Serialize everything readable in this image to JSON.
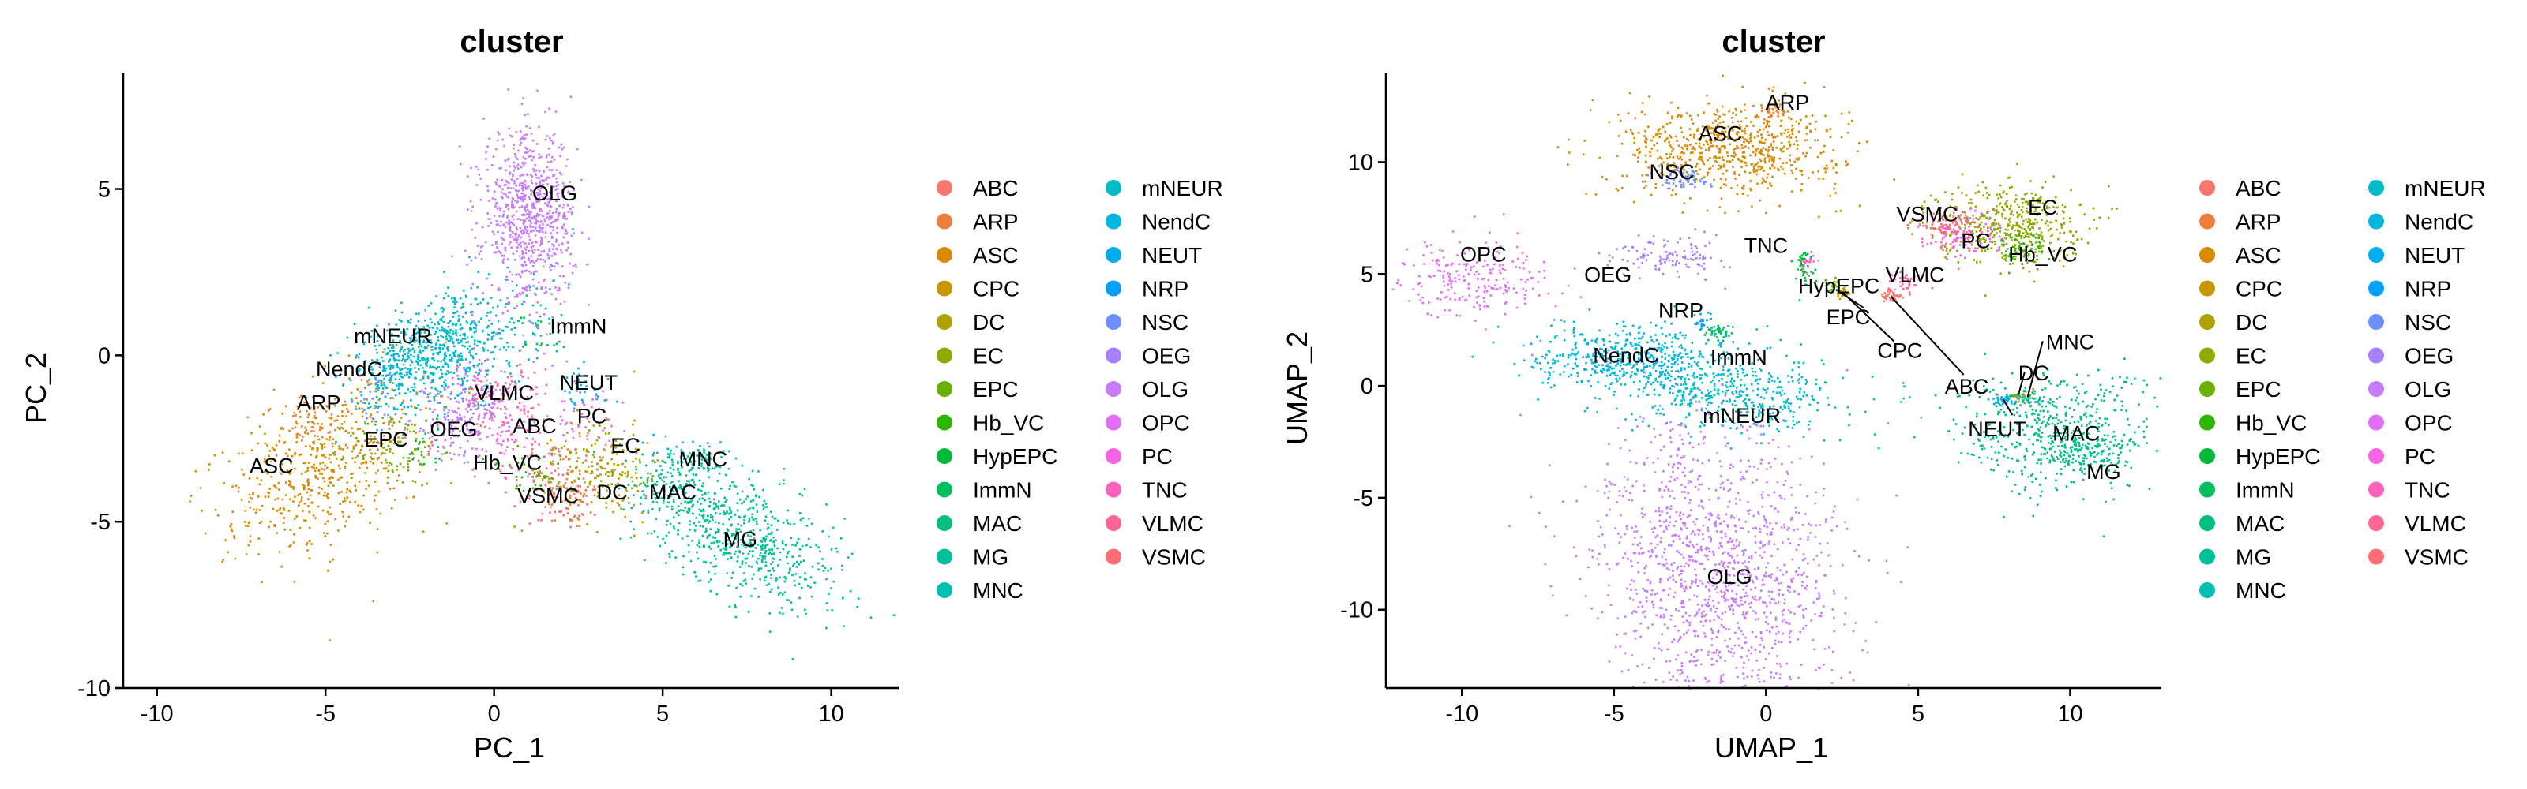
{
  "chart_data": [
    {
      "type": "scatter",
      "title": "cluster",
      "xlabel": "PC_1",
      "ylabel": "PC_2",
      "xlim": [
        -11,
        12
      ],
      "ylim": [
        -10,
        8.5
      ],
      "xticks": [
        -10,
        -5,
        0,
        5,
        10
      ],
      "yticks": [
        -10,
        -5,
        0,
        5
      ],
      "legend_position": "right",
      "clusters": [
        {
          "name": "ABC",
          "center": [
            2.2,
            -3.7
          ],
          "spread": [
            1.8,
            1.5
          ],
          "n": 60
        },
        {
          "name": "ARP",
          "center": [
            -5.5,
            -2.0
          ],
          "spread": [
            1.0,
            0.8
          ],
          "n": 40
        },
        {
          "name": "ASC",
          "center": [
            -5.0,
            -3.3
          ],
          "spread": [
            3.6,
            2.4
          ],
          "n": 600,
          "angle": 30
        },
        {
          "name": "CPC",
          "center": [
            2.0,
            -3.8
          ],
          "spread": [
            1.5,
            1.5
          ],
          "n": 60
        },
        {
          "name": "DC",
          "center": [
            3.5,
            -3.6
          ],
          "spread": [
            1.5,
            1.5
          ],
          "n": 120
        },
        {
          "name": "EC",
          "center": [
            3.0,
            -2.8
          ],
          "spread": [
            1.5,
            1.5
          ],
          "n": 50
        },
        {
          "name": "EPC",
          "center": [
            -3.0,
            -2.8
          ],
          "spread": [
            1.5,
            1.2
          ],
          "n": 80
        },
        {
          "name": "Hb_VC",
          "center": [
            1.0,
            -3.6
          ],
          "spread": [
            1.5,
            1.0
          ],
          "n": 40
        },
        {
          "name": "HypEPC",
          "center": [
            -2.0,
            -2.5
          ],
          "spread": [
            1.2,
            1.0
          ],
          "n": 20
        },
        {
          "name": "ImmN",
          "center": [
            1.3,
            0.6
          ],
          "spread": [
            1.0,
            0.8
          ],
          "n": 30
        },
        {
          "name": "MAC",
          "center": [
            5.5,
            -3.9
          ],
          "spread": [
            1.5,
            1.2
          ],
          "n": 80
        },
        {
          "name": "MG",
          "center": [
            7.2,
            -5.3
          ],
          "spread": [
            3.6,
            1.8
          ],
          "n": 650,
          "angle": -32
        },
        {
          "name": "MNC",
          "center": [
            5.8,
            -3.2
          ],
          "spread": [
            1.2,
            1.0
          ],
          "n": 70
        },
        {
          "name": "mNEUR",
          "center": [
            -1.5,
            0.3
          ],
          "spread": [
            3.0,
            1.6
          ],
          "n": 650,
          "angle": 25
        },
        {
          "name": "NendC",
          "center": [
            -3.0,
            -0.4
          ],
          "spread": [
            1.5,
            1.2
          ],
          "n": 120
        },
        {
          "name": "NEUT",
          "center": [
            2.5,
            -1.1
          ],
          "spread": [
            1.0,
            0.8
          ],
          "n": 30
        },
        {
          "name": "NRP",
          "center": [
            -0.5,
            -1.0
          ],
          "spread": [
            1.0,
            1.0
          ],
          "n": 30
        },
        {
          "name": "NSC",
          "center": [
            -3.5,
            -1.5
          ],
          "spread": [
            1.0,
            1.0
          ],
          "n": 30
        },
        {
          "name": "OEG",
          "center": [
            -1.2,
            -2.2
          ],
          "spread": [
            1.5,
            1.0
          ],
          "n": 80
        },
        {
          "name": "OLG",
          "center": [
            1.0,
            4.2
          ],
          "spread": [
            1.5,
            2.8
          ],
          "n": 800
        },
        {
          "name": "OPC",
          "center": [
            -0.5,
            -1.6
          ],
          "spread": [
            1.8,
            1.5
          ],
          "n": 180
        },
        {
          "name": "PC",
          "center": [
            2.7,
            -2.0
          ],
          "spread": [
            1.2,
            1.0
          ],
          "n": 40
        },
        {
          "name": "TNC",
          "center": [
            0.5,
            -2.7
          ],
          "spread": [
            1.5,
            1.2
          ],
          "n": 60
        },
        {
          "name": "VLMC",
          "center": [
            0.2,
            -1.2
          ],
          "spread": [
            1.5,
            1.0
          ],
          "n": 80
        },
        {
          "name": "VSMC",
          "center": [
            2.0,
            -4.2
          ],
          "spread": [
            1.2,
            1.0
          ],
          "n": 60
        }
      ],
      "annotations": [
        {
          "text": "OLG",
          "x": 1.8,
          "y": 4.9
        },
        {
          "text": "ImmN",
          "x": 2.5,
          "y": 0.9
        },
        {
          "text": "mNEUR",
          "x": -3.0,
          "y": 0.6
        },
        {
          "text": "NendC",
          "x": -4.3,
          "y": -0.4
        },
        {
          "text": "ARP",
          "x": -5.2,
          "y": -1.4
        },
        {
          "text": "VLMC",
          "x": 0.3,
          "y": -1.1
        },
        {
          "text": "NEUT",
          "x": 2.8,
          "y": -0.8
        },
        {
          "text": "PC",
          "x": 2.9,
          "y": -1.8
        },
        {
          "text": "ABC",
          "x": 1.2,
          "y": -2.1
        },
        {
          "text": "OEG",
          "x": -1.2,
          "y": -2.2
        },
        {
          "text": "EPC",
          "x": -3.2,
          "y": -2.5
        },
        {
          "text": "EC",
          "x": 3.9,
          "y": -2.7
        },
        {
          "text": "Hb_VC",
          "x": 0.4,
          "y": -3.2
        },
        {
          "text": "MNC",
          "x": 6.2,
          "y": -3.1
        },
        {
          "text": "ASC",
          "x": -6.6,
          "y": -3.3
        },
        {
          "text": "VSMC",
          "x": 1.6,
          "y": -4.2
        },
        {
          "text": "DC",
          "x": 3.5,
          "y": -4.1
        },
        {
          "text": "MAC",
          "x": 5.3,
          "y": -4.1
        },
        {
          "text": "MG",
          "x": 7.3,
          "y": -5.5
        }
      ]
    },
    {
      "type": "scatter",
      "title": "cluster",
      "xlabel": "UMAP_1",
      "ylabel": "UMAP_2",
      "xlim": [
        -12.5,
        13
      ],
      "ylim": [
        -13.5,
        14
      ],
      "xticks": [
        -10,
        -5,
        0,
        5,
        10
      ],
      "yticks": [
        -10,
        -5,
        0,
        5,
        10
      ],
      "legend_position": "right",
      "clusters": [
        {
          "name": "ABC",
          "center": [
            4.1,
            4.0
          ],
          "spread": [
            0.4,
            0.4
          ],
          "n": 40
        },
        {
          "name": "ARP",
          "center": [
            0.3,
            12.3
          ],
          "spread": [
            0.5,
            0.4
          ],
          "n": 30
        },
        {
          "name": "ASC",
          "center": [
            -1.2,
            10.7
          ],
          "spread": [
            4.0,
            2.3
          ],
          "n": 700
        },
        {
          "name": "CPC",
          "center": [
            2.5,
            4.2
          ],
          "spread": [
            0.3,
            0.3
          ],
          "n": 20
        },
        {
          "name": "DC",
          "center": [
            8.3,
            -0.4
          ],
          "spread": [
            0.5,
            0.3
          ],
          "n": 30
        },
        {
          "name": "EC",
          "center": [
            8.0,
            7.3
          ],
          "spread": [
            2.6,
            2.0
          ],
          "n": 450
        },
        {
          "name": "EPC",
          "center": [
            2.2,
            4.5
          ],
          "spread": [
            0.3,
            0.4
          ],
          "n": 20
        },
        {
          "name": "Hb_VC",
          "center": [
            8.3,
            6.2
          ],
          "spread": [
            1.0,
            0.8
          ],
          "n": 60
        },
        {
          "name": "HypEPC",
          "center": [
            1.2,
            5.3
          ],
          "spread": [
            0.4,
            1.0
          ],
          "n": 40
        },
        {
          "name": "ImmN",
          "center": [
            -1.6,
            2.4
          ],
          "spread": [
            0.6,
            0.5
          ],
          "n": 40
        },
        {
          "name": "MAC",
          "center": [
            9.5,
            -2.0
          ],
          "spread": [
            3.5,
            3.0
          ],
          "n": 500
        },
        {
          "name": "MG",
          "center": [
            10.5,
            -3.0
          ],
          "spread": [
            1.5,
            1.0
          ],
          "n": 100
        },
        {
          "name": "MNC",
          "center": [
            8.6,
            -0.5
          ],
          "spread": [
            0.6,
            0.4
          ],
          "n": 30
        },
        {
          "name": "mNEUR",
          "center": [
            -1.0,
            -0.4
          ],
          "spread": [
            3.8,
            1.8
          ],
          "n": 450
        },
        {
          "name": "NendC",
          "center": [
            -4.5,
            1.3
          ],
          "spread": [
            3.5,
            1.6
          ],
          "n": 500
        },
        {
          "name": "NEUT",
          "center": [
            7.8,
            -0.6
          ],
          "spread": [
            0.5,
            0.3
          ],
          "n": 30
        },
        {
          "name": "NRP",
          "center": [
            -2.1,
            2.9
          ],
          "spread": [
            0.4,
            0.3
          ],
          "n": 20
        },
        {
          "name": "NSC",
          "center": [
            -2.8,
            9.3
          ],
          "spread": [
            1.0,
            0.6
          ],
          "n": 60
        },
        {
          "name": "OEG",
          "center": [
            -3.1,
            5.8
          ],
          "spread": [
            2.0,
            1.0
          ],
          "n": 120
        },
        {
          "name": "OLG",
          "center": [
            -1.5,
            -8.5
          ],
          "spread": [
            4.5,
            7.5
          ],
          "n": 1400,
          "angle": 10
        },
        {
          "name": "OPC",
          "center": [
            -9.6,
            4.9
          ],
          "spread": [
            2.6,
            1.9
          ],
          "n": 220
        },
        {
          "name": "PC",
          "center": [
            6.5,
            6.8
          ],
          "spread": [
            1.5,
            1.2
          ],
          "n": 120
        },
        {
          "name": "TNC",
          "center": [
            1.3,
            5.6
          ],
          "spread": [
            0.3,
            0.5
          ],
          "n": 20
        },
        {
          "name": "VLMC",
          "center": [
            4.6,
            4.6
          ],
          "spread": [
            0.8,
            0.5
          ],
          "n": 40
        },
        {
          "name": "VSMC",
          "center": [
            5.9,
            7.2
          ],
          "spread": [
            1.0,
            0.8
          ],
          "n": 80
        }
      ],
      "annotations": [
        {
          "text": "ARP",
          "x": 0.7,
          "y": 12.7
        },
        {
          "text": "ASC",
          "x": -1.5,
          "y": 11.3
        },
        {
          "text": "NSC",
          "x": -3.1,
          "y": 9.6
        },
        {
          "text": "VSMC",
          "x": 5.3,
          "y": 7.7
        },
        {
          "text": "EC",
          "x": 9.1,
          "y": 8.0
        },
        {
          "text": "PC",
          "x": 6.9,
          "y": 6.5
        },
        {
          "text": "Hb_VC",
          "x": 9.1,
          "y": 5.9
        },
        {
          "text": "OPC",
          "x": -9.3,
          "y": 5.9
        },
        {
          "text": "TNC",
          "x": 0.0,
          "y": 6.3
        },
        {
          "text": "OEG",
          "x": -5.2,
          "y": 5.0
        },
        {
          "text": "VLMC",
          "x": 4.9,
          "y": 5.0
        },
        {
          "text": "HypEPC",
          "x": 2.4,
          "y": 4.5
        },
        {
          "text": "EPC",
          "x": 2.7,
          "y": 3.1
        },
        {
          "text": "NRP",
          "x": -2.8,
          "y": 3.4
        },
        {
          "text": "CPC",
          "x": 4.4,
          "y": 1.6
        },
        {
          "text": "MNC",
          "x": 10.0,
          "y": 2.0
        },
        {
          "text": "NendC",
          "x": -4.6,
          "y": 1.4
        },
        {
          "text": "ImmN",
          "x": -0.9,
          "y": 1.3
        },
        {
          "text": "DC",
          "x": 8.8,
          "y": 0.6
        },
        {
          "text": "ABC",
          "x": 6.6,
          "y": 0.0
        },
        {
          "text": "mNEUR",
          "x": -0.8,
          "y": -1.3
        },
        {
          "text": "NEUT",
          "x": 7.6,
          "y": -1.9
        },
        {
          "text": "MAC",
          "x": 10.2,
          "y": -2.1
        },
        {
          "text": "MG",
          "x": 11.1,
          "y": -3.8
        },
        {
          "text": "OLG",
          "x": -1.2,
          "y": -8.5
        }
      ],
      "leader_lines": [
        {
          "from": [
            3.2,
            3.5
          ],
          "to": [
            2.3,
            4.3
          ]
        },
        {
          "from": [
            4.2,
            2.0
          ],
          "to": [
            2.5,
            4.2
          ]
        },
        {
          "from": [
            6.5,
            0.5
          ],
          "to": [
            4.1,
            4.0
          ]
        },
        {
          "from": [
            9.1,
            2.0
          ],
          "to": [
            8.6,
            -0.5
          ]
        },
        {
          "from": [
            8.5,
            0.6
          ],
          "to": [
            8.3,
            -0.4
          ]
        },
        {
          "from": [
            8.1,
            -1.3
          ],
          "to": [
            7.8,
            -0.6
          ]
        }
      ]
    }
  ],
  "legend": {
    "items": [
      {
        "name": "ABC",
        "color": "#F8766D"
      },
      {
        "name": "ARP",
        "color": "#EA8331"
      },
      {
        "name": "ASC",
        "color": "#D89000"
      },
      {
        "name": "CPC",
        "color": "#C09B00"
      },
      {
        "name": "DC",
        "color": "#A3A500"
      },
      {
        "name": "EC",
        "color": "#7CAE00"
      },
      {
        "name": "EPC",
        "color": "#39B600"
      },
      {
        "name": "Hb_VC",
        "color": "#00BB4E"
      },
      {
        "name": "HypEPC",
        "color": "#00BF7D"
      },
      {
        "name": "ImmN",
        "color": "#00C1A3"
      },
      {
        "name": "MAC",
        "color": "#00BFC4"
      },
      {
        "name": "MG",
        "color": "#00BAE0"
      },
      {
        "name": "MNC",
        "color": "#00B0F6"
      },
      {
        "name": "mNEUR",
        "color": "#35A2FF"
      },
      {
        "name": "NendC",
        "color": "#9590FF"
      },
      {
        "name": "NEUT",
        "color": "#C77CFF"
      },
      {
        "name": "NRP",
        "color": "#E76BF3"
      },
      {
        "name": "NSC",
        "color": "#FA62DB"
      },
      {
        "name": "OEG",
        "color": "#FF62BC"
      },
      {
        "name": "OLG",
        "color": "#FF6C91"
      },
      {
        "name": "OPC",
        "color": "#F8766D"
      },
      {
        "name": "PC",
        "color": "#E76BF3"
      },
      {
        "name": "TNC",
        "color": "#FA62DB"
      },
      {
        "name": "VLMC",
        "color": "#FF62BC"
      },
      {
        "name": "VSMC",
        "color": "#FF6C91"
      }
    ],
    "order": [
      "ABC",
      "ARP",
      "ASC",
      "CPC",
      "DC",
      "EC",
      "EPC",
      "Hb_VC",
      "HypEPC",
      "ImmN",
      "MAC",
      "MG",
      "MNC",
      "mNEUR",
      "NendC",
      "NEUT",
      "NRP",
      "NSC",
      "OEG",
      "OLG",
      "OPC",
      "PC",
      "TNC",
      "VLMC",
      "VSMC"
    ]
  },
  "colors": {
    "ABC": "#F8766D",
    "ARP": "#EC7F3C",
    "ASC": "#D98A00",
    "CPC": "#C79800",
    "DC": "#AFA100",
    "EC": "#8FAA00",
    "EPC": "#69B000",
    "Hb_VC": "#2DB600",
    "HypEPC": "#00BA38",
    "ImmN": "#00BD5F",
    "MAC": "#00BF7D",
    "MG": "#00C098",
    "MNC": "#00BFB1",
    "mNEUR": "#00BCC9",
    "NendC": "#00B6DE",
    "NEUT": "#00ADF1",
    "NRP": "#00A1FF",
    "NSC": "#6E90FF",
    "OEG": "#A680FF",
    "OLG": "#C77CFF",
    "OPC": "#E36EF6",
    "PC": "#F564E3",
    "TNC": "#FF62BC",
    "VLMC": "#FF6696",
    "VSMC": "#FF6C73"
  }
}
